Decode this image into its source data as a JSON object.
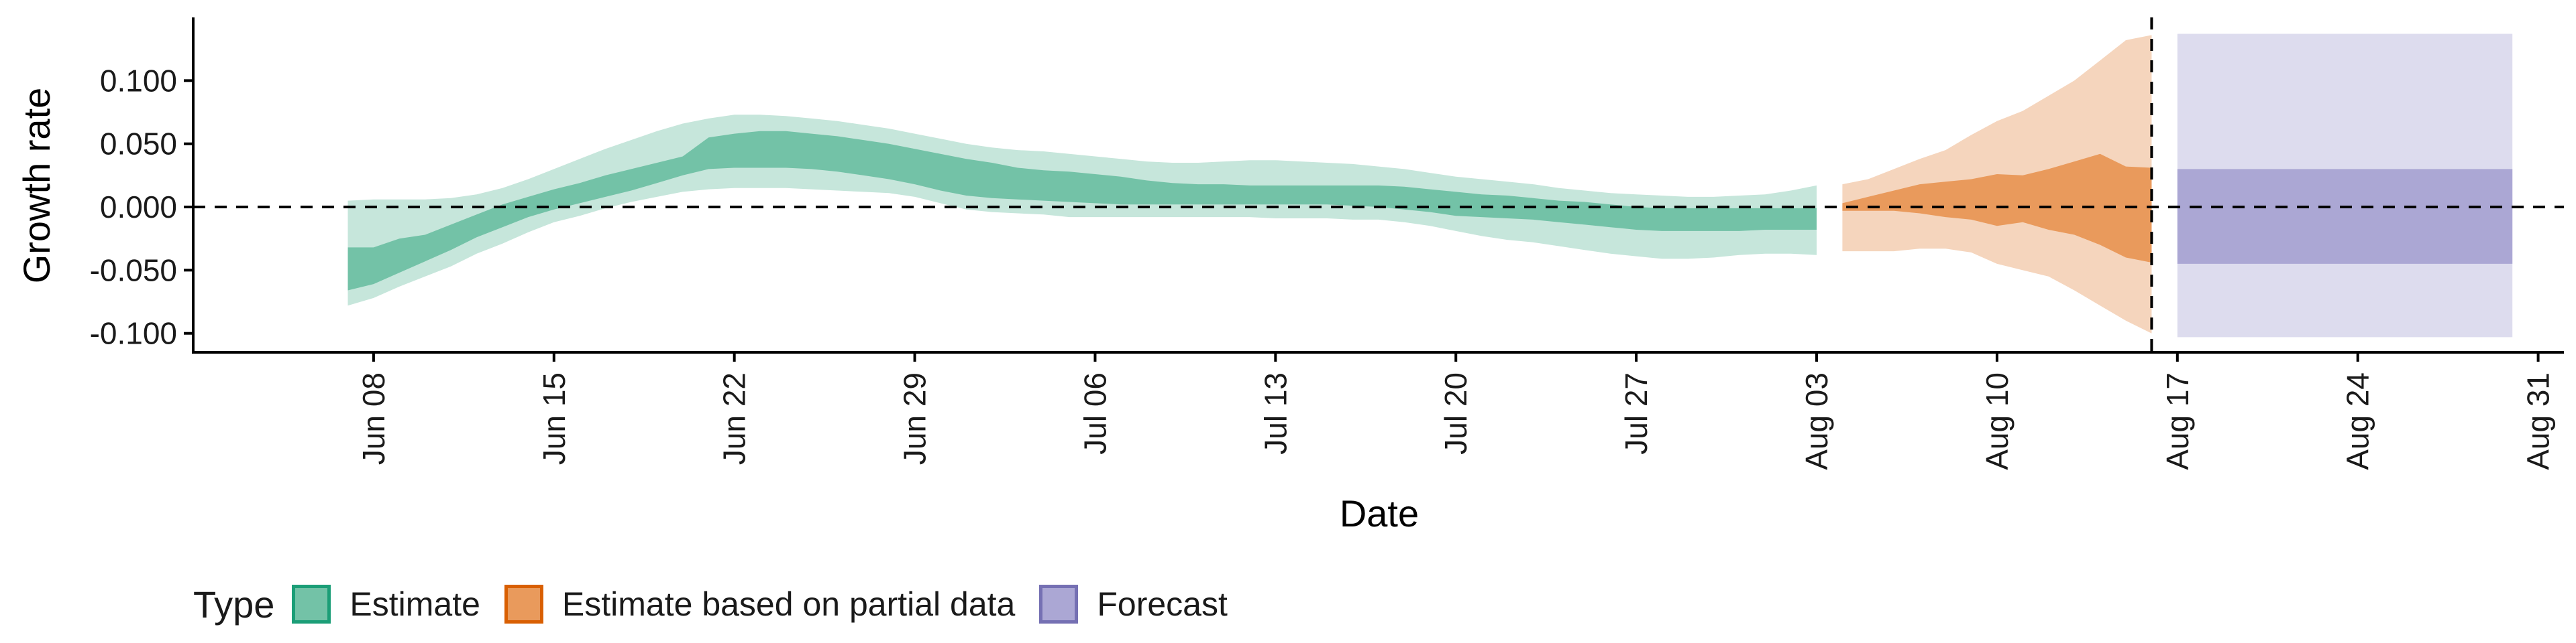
{
  "chart_data": {
    "type": "area",
    "xlabel": "Date",
    "ylabel": "Growth rate",
    "ylim": [
      -0.115,
      0.15
    ],
    "yticks": [
      -0.1,
      -0.05,
      0.0,
      0.05,
      0.1
    ],
    "ytick_labels": [
      "-0.100",
      "-0.050",
      "0.000",
      "0.050",
      "0.100"
    ],
    "xlim": [
      "2020-06-01",
      "2020-09-01"
    ],
    "xticks": [
      "2020-06-08",
      "2020-06-15",
      "2020-06-22",
      "2020-06-29",
      "2020-07-06",
      "2020-07-13",
      "2020-07-20",
      "2020-07-27",
      "2020-08-03",
      "2020-08-10",
      "2020-08-17",
      "2020-08-24",
      "2020-08-31"
    ],
    "xtick_labels": [
      "Jun 08",
      "Jun 15",
      "Jun 22",
      "Jun 29",
      "Jul 06",
      "Jul 13",
      "Jul 20",
      "Jul 27",
      "Aug 03",
      "Aug 10",
      "Aug 17",
      "Aug 24",
      "Aug 31"
    ],
    "reference_lines": {
      "horizontal_y": 0.0,
      "vertical_date": "2020-08-16"
    },
    "grid": false,
    "legend_title": "Type",
    "legend_position": "bottom-left",
    "series": [
      {
        "name": "Estimate",
        "color": "#1b9e77",
        "fill_inner": "#73c2a7",
        "fill_outer": "#c6e6db",
        "x": [
          "2020-06-07",
          "2020-06-08",
          "2020-06-09",
          "2020-06-10",
          "2020-06-11",
          "2020-06-12",
          "2020-06-13",
          "2020-06-14",
          "2020-06-15",
          "2020-06-16",
          "2020-06-17",
          "2020-06-18",
          "2020-06-19",
          "2020-06-20",
          "2020-06-21",
          "2020-06-22",
          "2020-06-23",
          "2020-06-24",
          "2020-06-25",
          "2020-06-26",
          "2020-06-27",
          "2020-06-28",
          "2020-06-29",
          "2020-06-30",
          "2020-07-01",
          "2020-07-02",
          "2020-07-03",
          "2020-07-04",
          "2020-07-05",
          "2020-07-06",
          "2020-07-07",
          "2020-07-08",
          "2020-07-09",
          "2020-07-10",
          "2020-07-11",
          "2020-07-12",
          "2020-07-13",
          "2020-07-14",
          "2020-07-15",
          "2020-07-16",
          "2020-07-17",
          "2020-07-18",
          "2020-07-19",
          "2020-07-20",
          "2020-07-21",
          "2020-07-22",
          "2020-07-23",
          "2020-07-24",
          "2020-07-25",
          "2020-07-26",
          "2020-07-27",
          "2020-07-28",
          "2020-07-29",
          "2020-07-30",
          "2020-07-31",
          "2020-08-01",
          "2020-08-02",
          "2020-08-03"
        ],
        "lower_90": [
          -0.078,
          -0.072,
          -0.063,
          -0.055,
          -0.047,
          -0.037,
          -0.029,
          -0.02,
          -0.012,
          -0.007,
          -0.001,
          0.004,
          0.008,
          0.012,
          0.014,
          0.015,
          0.015,
          0.015,
          0.014,
          0.013,
          0.012,
          0.011,
          0.008,
          0.003,
          -0.002,
          -0.004,
          -0.005,
          -0.006,
          -0.008,
          -0.008,
          -0.008,
          -0.008,
          -0.008,
          -0.008,
          -0.008,
          -0.008,
          -0.009,
          -0.009,
          -0.009,
          -0.01,
          -0.01,
          -0.012,
          -0.015,
          -0.019,
          -0.023,
          -0.026,
          -0.028,
          -0.031,
          -0.034,
          -0.037,
          -0.039,
          -0.041,
          -0.041,
          -0.04,
          -0.038,
          -0.037,
          -0.037,
          -0.038
        ],
        "lower_50": [
          -0.066,
          -0.061,
          -0.052,
          -0.043,
          -0.034,
          -0.024,
          -0.016,
          -0.008,
          -0.002,
          0.003,
          0.008,
          0.013,
          0.019,
          0.025,
          0.03,
          0.031,
          0.031,
          0.031,
          0.03,
          0.028,
          0.025,
          0.022,
          0.018,
          0.013,
          0.009,
          0.007,
          0.006,
          0.005,
          0.004,
          0.003,
          0.002,
          0.002,
          0.002,
          0.002,
          0.002,
          0.002,
          0.002,
          0.002,
          0.002,
          0.001,
          0.0,
          -0.002,
          -0.004,
          -0.007,
          -0.008,
          -0.009,
          -0.01,
          -0.012,
          -0.014,
          -0.016,
          -0.018,
          -0.019,
          -0.019,
          -0.019,
          -0.019,
          -0.018,
          -0.018,
          -0.018
        ],
        "upper_50": [
          -0.032,
          -0.032,
          -0.025,
          -0.022,
          -0.014,
          -0.006,
          0.002,
          0.008,
          0.014,
          0.019,
          0.025,
          0.03,
          0.035,
          0.04,
          0.055,
          0.058,
          0.06,
          0.06,
          0.058,
          0.056,
          0.053,
          0.05,
          0.046,
          0.042,
          0.038,
          0.035,
          0.031,
          0.029,
          0.028,
          0.026,
          0.024,
          0.021,
          0.019,
          0.018,
          0.018,
          0.017,
          0.017,
          0.017,
          0.017,
          0.017,
          0.017,
          0.016,
          0.014,
          0.012,
          0.01,
          0.009,
          0.007,
          0.005,
          0.004,
          0.002,
          0.0,
          -0.001,
          -0.001,
          -0.001,
          -0.001,
          -0.001,
          -0.001,
          -0.001
        ],
        "upper_90": [
          0.005,
          0.006,
          0.006,
          0.006,
          0.007,
          0.01,
          0.015,
          0.022,
          0.03,
          0.038,
          0.046,
          0.053,
          0.06,
          0.066,
          0.07,
          0.073,
          0.073,
          0.072,
          0.07,
          0.068,
          0.065,
          0.062,
          0.058,
          0.054,
          0.05,
          0.047,
          0.045,
          0.044,
          0.042,
          0.04,
          0.038,
          0.036,
          0.035,
          0.035,
          0.036,
          0.037,
          0.037,
          0.036,
          0.035,
          0.034,
          0.032,
          0.03,
          0.027,
          0.024,
          0.022,
          0.02,
          0.018,
          0.015,
          0.013,
          0.011,
          0.01,
          0.009,
          0.008,
          0.008,
          0.009,
          0.01,
          0.013,
          0.017
        ]
      },
      {
        "name": "Estimate based on partial data",
        "color": "#d95f02",
        "fill_inner": "#e99a5c",
        "fill_outer": "#f5d5bd",
        "x": [
          "2020-08-04",
          "2020-08-05",
          "2020-08-06",
          "2020-08-07",
          "2020-08-08",
          "2020-08-09",
          "2020-08-10",
          "2020-08-11",
          "2020-08-12",
          "2020-08-13",
          "2020-08-14",
          "2020-08-15",
          "2020-08-16"
        ],
        "lower_90": [
          -0.035,
          -0.035,
          -0.035,
          -0.033,
          -0.033,
          -0.036,
          -0.045,
          -0.05,
          -0.055,
          -0.066,
          -0.078,
          -0.09,
          -0.1
        ],
        "lower_50": [
          -0.003,
          -0.003,
          -0.003,
          -0.005,
          -0.008,
          -0.01,
          -0.015,
          -0.012,
          -0.018,
          -0.022,
          -0.03,
          -0.04,
          -0.044
        ],
        "upper_50": [
          0.003,
          0.008,
          0.013,
          0.018,
          0.02,
          0.022,
          0.026,
          0.025,
          0.03,
          0.036,
          0.042,
          0.032,
          0.031
        ],
        "upper_90": [
          0.018,
          0.022,
          0.03,
          0.038,
          0.045,
          0.057,
          0.068,
          0.076,
          0.088,
          0.1,
          0.116,
          0.132,
          0.136
        ]
      },
      {
        "name": "Forecast",
        "color": "#7570b3",
        "fill_inner": "#aba7d4",
        "fill_outer": "#dddcee",
        "x": [
          "2020-08-17",
          "2020-08-30"
        ],
        "lower_90": [
          -0.103,
          -0.103
        ],
        "lower_50": [
          -0.045,
          -0.045
        ],
        "upper_50": [
          0.03,
          0.03
        ],
        "upper_90": [
          0.137,
          0.137
        ]
      }
    ]
  }
}
